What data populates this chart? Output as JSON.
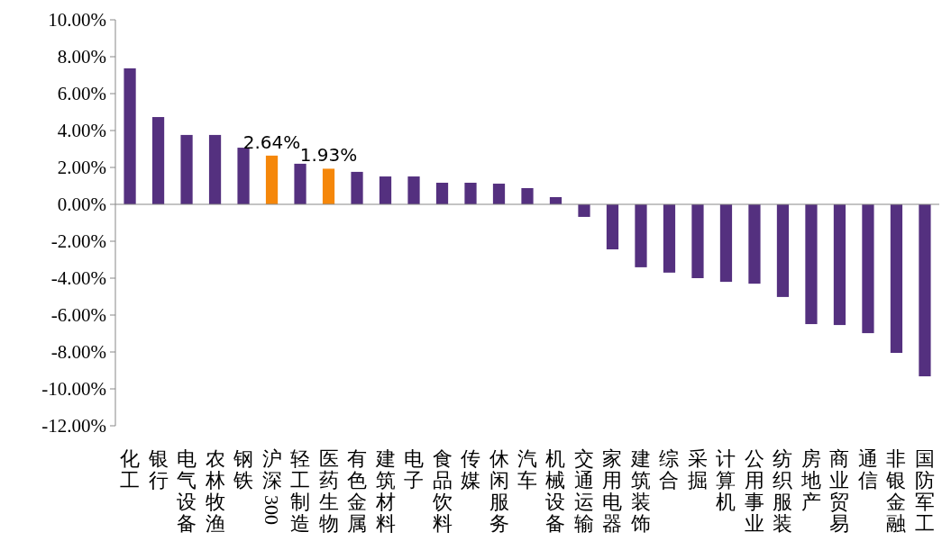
{
  "chart_data": {
    "type": "bar",
    "categories": [
      "化工",
      "银行",
      "电气设备",
      "农林牧渔",
      "钢铁",
      "沪深300",
      "轻工制造",
      "医药生物",
      "有色金属",
      "建筑材料",
      "电子",
      "食品饮料",
      "传媒",
      "休闲服务",
      "汽车",
      "机械设备",
      "交通运输",
      "家用电器",
      "建筑装饰",
      "综合",
      "采掘",
      "计算机",
      "公用事业",
      "纺织服装",
      "房地产",
      "商业贸易",
      "通信",
      "非银金融",
      "国防军工"
    ],
    "values": [
      7.37,
      4.73,
      3.76,
      3.76,
      3.07,
      2.64,
      2.2,
      1.93,
      1.76,
      1.51,
      1.51,
      1.17,
      1.17,
      1.12,
      0.88,
      0.39,
      -0.68,
      -2.44,
      -3.41,
      -3.7,
      -4.0,
      -4.2,
      -4.3,
      -5.02,
      -6.49,
      -6.54,
      -6.98,
      -8.05,
      -9.32
    ],
    "colors": [
      "#54307f",
      "#54307f",
      "#54307f",
      "#54307f",
      "#54307f",
      "#f5870a",
      "#54307f",
      "#f5870a",
      "#54307f",
      "#54307f",
      "#54307f",
      "#54307f",
      "#54307f",
      "#54307f",
      "#54307f",
      "#54307f",
      "#54307f",
      "#54307f",
      "#54307f",
      "#54307f",
      "#54307f",
      "#54307f",
      "#54307f",
      "#54307f",
      "#54307f",
      "#54307f",
      "#54307f",
      "#54307f",
      "#54307f"
    ],
    "value_labels": [
      null,
      null,
      null,
      null,
      null,
      "2.64%",
      null,
      "1.93%",
      null,
      null,
      null,
      null,
      null,
      null,
      null,
      null,
      null,
      null,
      null,
      null,
      null,
      null,
      null,
      null,
      null,
      null,
      null,
      null,
      null
    ],
    "ylim": [
      -12,
      10
    ],
    "yticks": [
      {
        "value": 10,
        "label": "10.00%"
      },
      {
        "value": 8,
        "label": "8.00%"
      },
      {
        "value": 6,
        "label": "6.00%"
      },
      {
        "value": 4,
        "label": "4.00%"
      },
      {
        "value": 2,
        "label": "2.00%"
      },
      {
        "value": 0,
        "label": "0.00%"
      },
      {
        "value": -2,
        "label": "-2.00%"
      },
      {
        "value": -4,
        "label": "-4.00%"
      },
      {
        "value": -6,
        "label": "-6.00%"
      },
      {
        "value": -8,
        "label": "-8.00%"
      },
      {
        "value": -10,
        "label": "-10.00%"
      },
      {
        "value": -12,
        "label": "-12.00%"
      }
    ]
  }
}
